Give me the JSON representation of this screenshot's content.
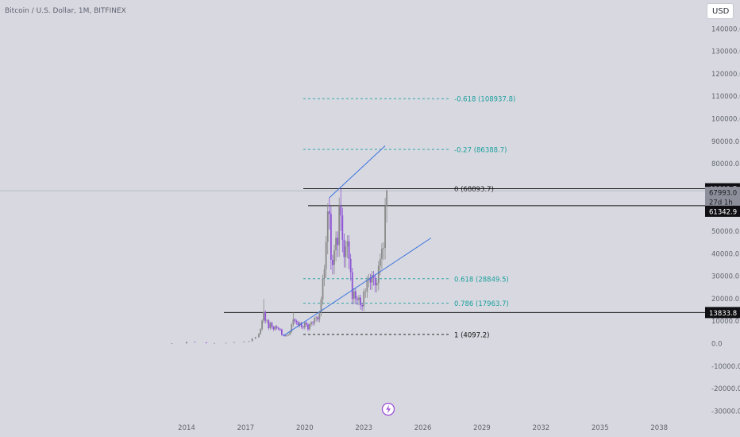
{
  "header": {
    "symbol_title": "Bitcoin / U.S. Dollar, 1M, BITFINEX",
    "currency_label": "USD"
  },
  "colors": {
    "background": "#d8d9e0",
    "fib_level": "#1a9e9e",
    "trend_line": "#3b72e0",
    "horizontal_line": "#101010",
    "candle_up": "#8a8a8a",
    "candle_down": "#8e52d6",
    "axis_text": "#60646f",
    "tag_black": "#101014",
    "tag_gray": "#8c8f99"
  },
  "icons": {
    "lightning": "lightning-icon"
  },
  "price_tags": [
    {
      "name": "tag-68893",
      "text": "68893.7",
      "style": "black"
    },
    {
      "name": "tag-67993",
      "text": "67993.0",
      "style": "gray"
    },
    {
      "name": "tag-countdown",
      "text": "27d 1h",
      "style": "gray"
    },
    {
      "name": "tag-61342",
      "text": "61342.9",
      "style": "black"
    },
    {
      "name": "tag-13833",
      "text": "13833.8",
      "style": "black"
    }
  ],
  "chart_data": {
    "type": "candlestick",
    "title": "Bitcoin / U.S. Dollar, 1M, BITFINEX",
    "xlabel": "",
    "ylabel": "",
    "ylim": [
      -30000,
      140000
    ],
    "x_ticks": [
      "2014",
      "2017",
      "2020",
      "2023",
      "2026",
      "2029",
      "2032",
      "2035",
      "2038"
    ],
    "y_ticks": [
      "140000.0",
      "130000.0",
      "120000.0",
      "110000.0",
      "100000.0",
      "90000.0",
      "80000.0",
      "70000.0",
      "60000.0",
      "50000.0",
      "40000.0",
      "30000.0",
      "20000.0",
      "10000.0",
      "0.0",
      "-10000.0",
      "-20000.0",
      "-30000.0"
    ],
    "fib_levels": [
      {
        "label": "-0.618 (108937.8)",
        "value": 108937.8
      },
      {
        "label": "-0.27 (86388.7)",
        "value": 86388.7
      },
      {
        "label": "0 (68893.7)",
        "value": 68893.7
      },
      {
        "label": "0.618 (28849.5)",
        "value": 28849.5
      },
      {
        "label": "0.786 (17963.7)",
        "value": 17963.7
      },
      {
        "label": "1 (4097.2)",
        "value": 4097.2
      }
    ],
    "horizontal_lines": [
      68893.7,
      61342.9,
      13833.8
    ],
    "trend_lines": [
      {
        "name": "upper",
        "from": [
          "2021-04",
          64899
        ],
        "to": [
          "2024-02",
          88000
        ]
      },
      {
        "name": "lower",
        "from": [
          "2018-12",
          3500
        ],
        "to": [
          "2026-06",
          47000
        ]
      }
    ],
    "last_price": 67993.0,
    "countdown": "27d 1h",
    "candles": [
      {
        "t": "2013-04",
        "c": 120
      },
      {
        "t": "2014-01",
        "c": 800
      },
      {
        "t": "2014-06",
        "c": 600
      },
      {
        "t": "2015-01",
        "c": 220
      },
      {
        "t": "2015-06",
        "c": 260
      },
      {
        "t": "2016-01",
        "c": 370
      },
      {
        "t": "2016-06",
        "c": 670
      },
      {
        "t": "2016-12",
        "c": 960
      },
      {
        "t": "2017-03",
        "c": 1080
      },
      {
        "t": "2017-05",
        "c": 2300
      },
      {
        "t": "2017-07",
        "c": 2900
      },
      {
        "t": "2017-09",
        "c": 4360
      },
      {
        "t": "2017-10",
        "c": 6450
      },
      {
        "t": "2017-11",
        "c": 10200
      },
      {
        "t": "2017-12",
        "c": 14000,
        "h": 19800
      },
      {
        "t": "2018-01",
        "c": 10200
      },
      {
        "t": "2018-02",
        "c": 10300
      },
      {
        "t": "2018-03",
        "c": 6900
      },
      {
        "t": "2018-04",
        "c": 9200
      },
      {
        "t": "2018-05",
        "c": 7500
      },
      {
        "t": "2018-06",
        "c": 6400
      },
      {
        "t": "2018-07",
        "c": 7700
      },
      {
        "t": "2018-08",
        "c": 7000
      },
      {
        "t": "2018-09",
        "c": 6600
      },
      {
        "t": "2018-10",
        "c": 6300
      },
      {
        "t": "2018-11",
        "c": 4000
      },
      {
        "t": "2018-12",
        "c": 3700
      },
      {
        "t": "2019-01",
        "c": 3450
      },
      {
        "t": "2019-02",
        "c": 3800
      },
      {
        "t": "2019-03",
        "c": 4100
      },
      {
        "t": "2019-04",
        "c": 5300
      },
      {
        "t": "2019-05",
        "c": 8600
      },
      {
        "t": "2019-06",
        "c": 10800,
        "h": 13800
      },
      {
        "t": "2019-07",
        "c": 10100
      },
      {
        "t": "2019-08",
        "c": 9600
      },
      {
        "t": "2019-09",
        "c": 8300
      },
      {
        "t": "2019-10",
        "c": 9200
      },
      {
        "t": "2019-11",
        "c": 7600
      },
      {
        "t": "2019-12",
        "c": 7200
      },
      {
        "t": "2020-01",
        "c": 9350
      },
      {
        "t": "2020-02",
        "c": 8550
      },
      {
        "t": "2020-03",
        "c": 6400
      },
      {
        "t": "2020-04",
        "c": 8650
      },
      {
        "t": "2020-05",
        "c": 9450
      },
      {
        "t": "2020-06",
        "c": 9150
      },
      {
        "t": "2020-07",
        "c": 11350
      },
      {
        "t": "2020-08",
        "c": 11650
      },
      {
        "t": "2020-09",
        "c": 10800
      },
      {
        "t": "2020-10",
        "c": 13800
      },
      {
        "t": "2020-11",
        "c": 19700
      },
      {
        "t": "2020-12",
        "c": 29000
      },
      {
        "t": "2021-01",
        "c": 33100
      },
      {
        "t": "2021-02",
        "c": 45200
      },
      {
        "t": "2021-03",
        "c": 58800
      },
      {
        "t": "2021-04",
        "c": 57700,
        "h": 64899
      },
      {
        "t": "2021-05",
        "c": 37300
      },
      {
        "t": "2021-06",
        "c": 35000
      },
      {
        "t": "2021-07",
        "c": 41500
      },
      {
        "t": "2021-08",
        "c": 47100
      },
      {
        "t": "2021-09",
        "c": 43800
      },
      {
        "t": "2021-10",
        "c": 61300
      },
      {
        "t": "2021-11",
        "c": 57000,
        "h": 68893.7
      },
      {
        "t": "2021-12",
        "c": 46200
      },
      {
        "t": "2022-01",
        "c": 38500
      },
      {
        "t": "2022-02",
        "c": 43200
      },
      {
        "t": "2022-03",
        "c": 45500
      },
      {
        "t": "2022-04",
        "c": 37700
      },
      {
        "t": "2022-05",
        "c": 31800
      },
      {
        "t": "2022-06",
        "c": 19900
      },
      {
        "t": "2022-07",
        "c": 23300
      },
      {
        "t": "2022-08",
        "c": 20050
      },
      {
        "t": "2022-09",
        "c": 19400
      },
      {
        "t": "2022-10",
        "c": 20500
      },
      {
        "t": "2022-11",
        "c": 17150
      },
      {
        "t": "2022-12",
        "c": 16550
      },
      {
        "t": "2023-01",
        "c": 23100
      },
      {
        "t": "2023-02",
        "c": 23150
      },
      {
        "t": "2023-03",
        "c": 28450
      },
      {
        "t": "2023-04",
        "c": 29250
      },
      {
        "t": "2023-05",
        "c": 27200
      },
      {
        "t": "2023-06",
        "c": 30450
      },
      {
        "t": "2023-07",
        "c": 29250
      },
      {
        "t": "2023-08",
        "c": 25950
      },
      {
        "t": "2023-09",
        "c": 26950
      },
      {
        "t": "2023-10",
        "c": 34650
      },
      {
        "t": "2023-11",
        "c": 37700
      },
      {
        "t": "2023-12",
        "c": 42250
      },
      {
        "t": "2024-01",
        "c": 42550
      },
      {
        "t": "2024-02",
        "c": 61150
      },
      {
        "t": "2024-03",
        "c": 67993,
        "h": 68893.7
      }
    ]
  }
}
